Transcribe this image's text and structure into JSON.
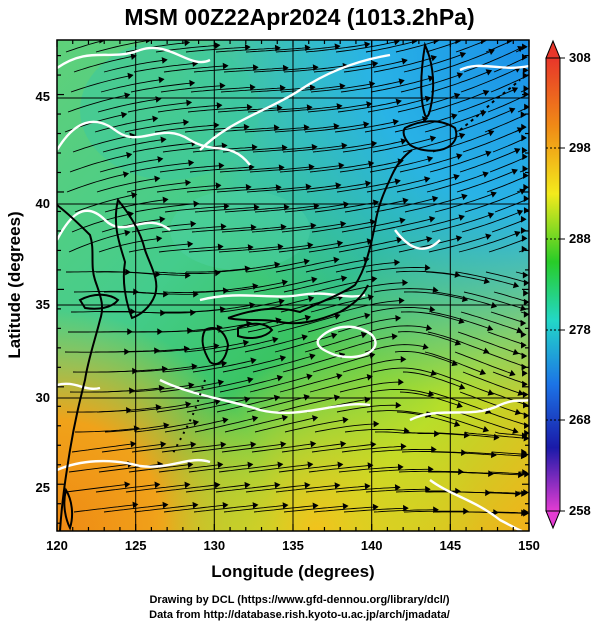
{
  "title": "MSM 00Z22Apr2024 (1013.2hPa)",
  "xlabel": "Longitude (degrees)",
  "ylabel": "Latitude  (degrees)",
  "x_ticks": [
    "120",
    "125",
    "130",
    "135",
    "140",
    "145",
    "150"
  ],
  "y_ticks": [
    "25",
    "30",
    "35",
    "40",
    "45"
  ],
  "colorbar": {
    "ticks": [
      "308",
      "298",
      "288",
      "278",
      "268",
      "258"
    ],
    "colors": {
      "top": "#e8362a",
      "orange": "#f59a0f",
      "yellow": "#f3ea1c",
      "green": "#28cc28",
      "cyan": "#23d7c8",
      "blue": "#1c74e6",
      "navy": "#1a1aa8",
      "magenta": "#e33cd2"
    }
  },
  "credits": {
    "line1": "Drawing by DCL (https://www.gfd-dennou.org/library/dcl/)",
    "line2": "Data from http://database.rish.kyoto-u.ac.jp/arch/jmadata/"
  }
}
